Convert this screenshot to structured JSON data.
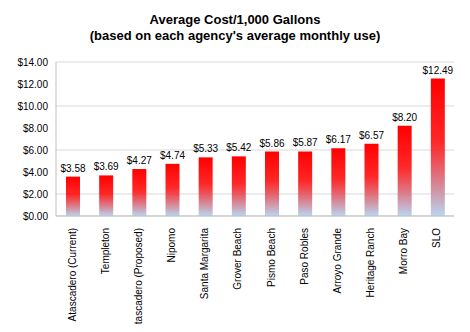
{
  "chart_data": {
    "type": "bar",
    "title": "Average Cost/1,000 Gallons",
    "subtitle": "(based on each agency's average monthly use)",
    "categories": [
      "Atascadero (Current)",
      "Templeton",
      "Atascadero (Proposed)",
      "Nipomo",
      "Santa Margarita",
      "Grover Beach",
      "Pismo Beach",
      "Paso Robles",
      "Arroyo Grande",
      "Heritage Ranch",
      "Morro Bay",
      "SLO"
    ],
    "values": [
      3.58,
      3.69,
      4.27,
      4.74,
      5.33,
      5.42,
      5.86,
      5.87,
      6.17,
      6.57,
      8.2,
      12.49
    ],
    "value_labels": [
      "$3.58",
      "$3.69",
      "$4.27",
      "$4.74",
      "$5.33",
      "$5.42",
      "$5.86",
      "$5.87",
      "$6.17",
      "$6.57",
      "$8.20",
      "$12.49"
    ],
    "color": "#ff0000",
    "ylim": [
      0,
      14
    ],
    "yticks": [
      {
        "value": 0,
        "label": "$0.00"
      },
      {
        "value": 2,
        "label": "$2.00"
      },
      {
        "value": 4,
        "label": "$4.00"
      },
      {
        "value": 6,
        "label": "$6.00"
      },
      {
        "value": 8,
        "label": "$8.00"
      },
      {
        "value": 10,
        "label": "$10.00"
      },
      {
        "value": 12,
        "label": "$12.00"
      },
      {
        "value": 14,
        "label": "$14.00"
      }
    ],
    "grid": true,
    "data_labels": true
  }
}
